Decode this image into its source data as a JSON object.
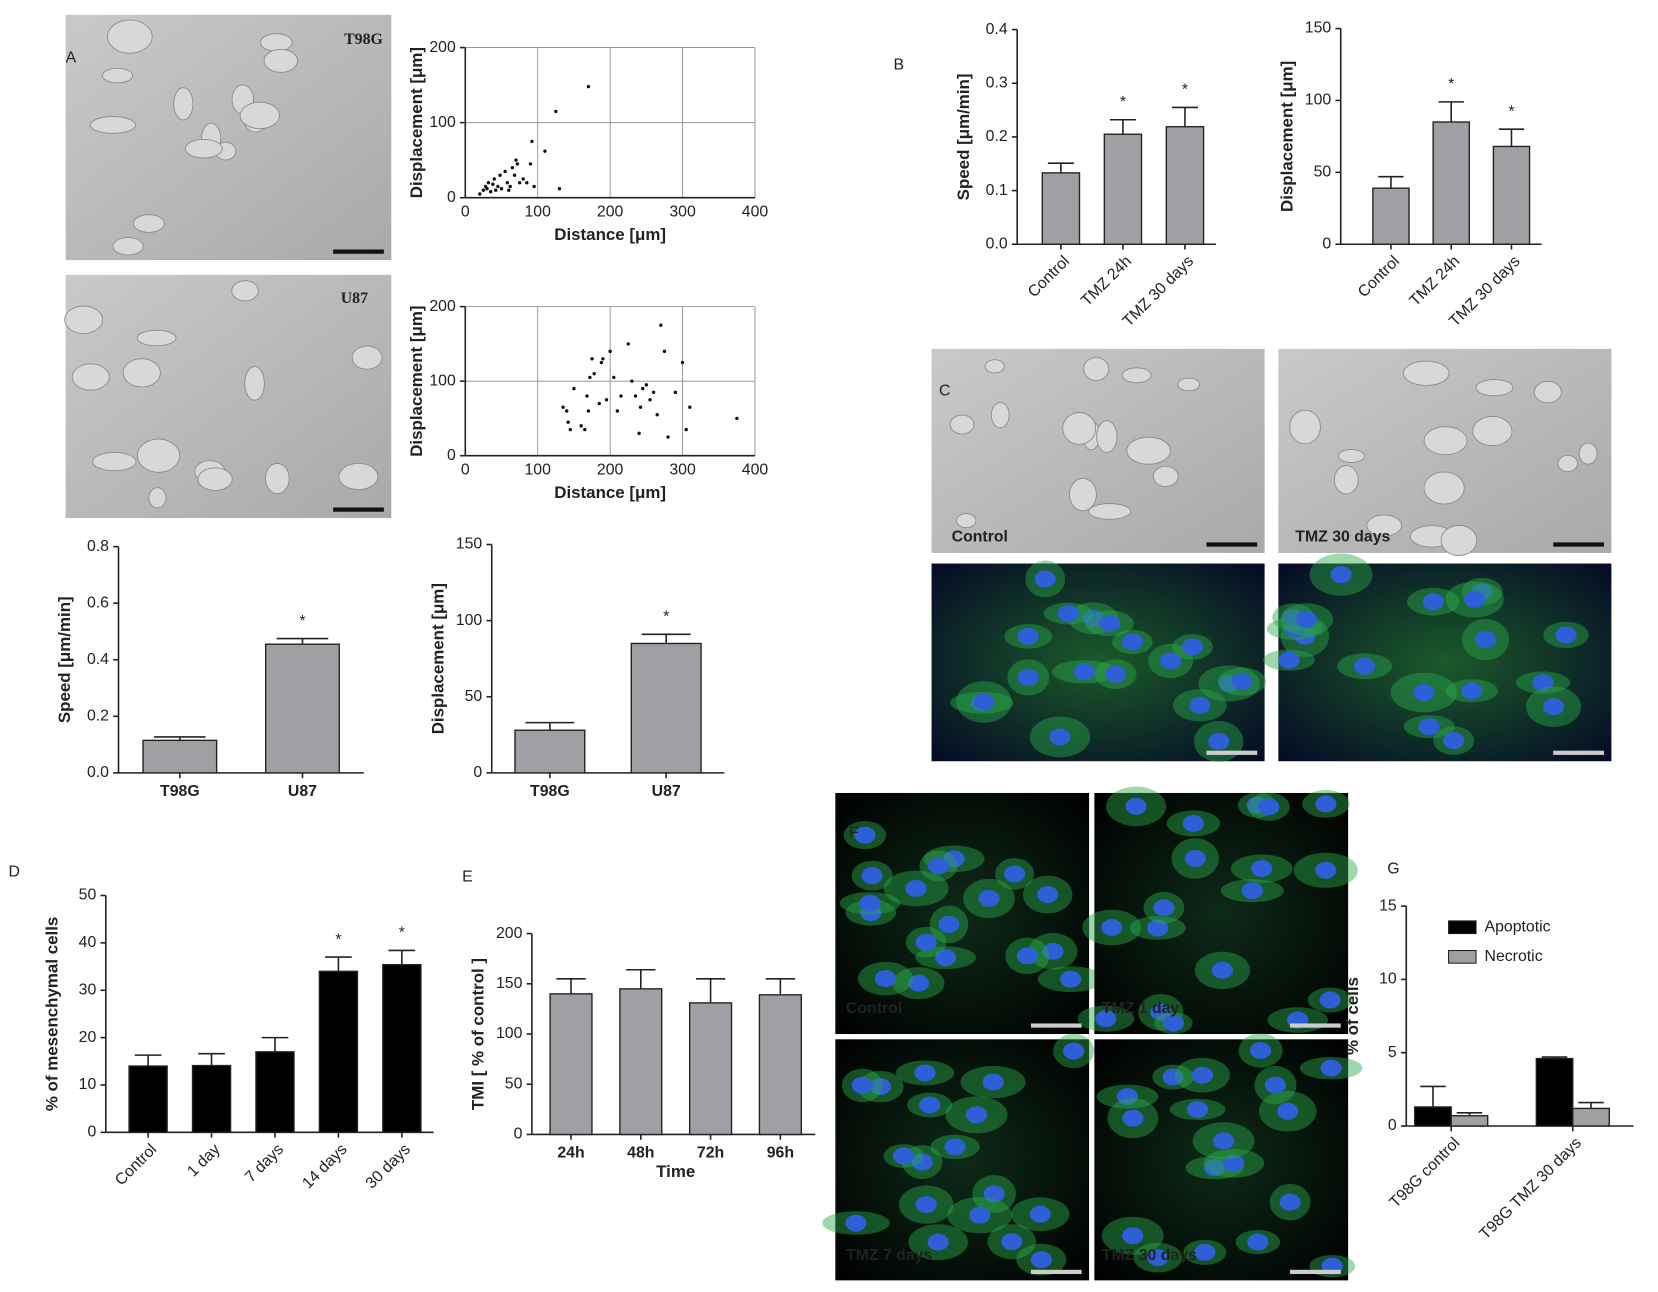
{
  "panel_labels": [
    "A",
    "B",
    "C",
    "D",
    "E",
    "F",
    "G"
  ],
  "images": [
    {
      "label": "T98G"
    },
    {
      "label": "U87"
    },
    {
      "label": "Control"
    },
    {
      "label": "TMZ 30 days"
    },
    {
      "label": "Control"
    },
    {
      "label": "TMZ 1 day"
    },
    {
      "label": "TMZ 7 days"
    },
    {
      "label": "TMZ 30 days"
    }
  ],
  "chart_data": [
    {
      "type": "scatter",
      "xlabel": "Distance [μm]",
      "ylabel": "Displacement [μm]",
      "xlim": [
        0,
        400
      ],
      "ylim": [
        0,
        200
      ],
      "xticks": [
        0,
        100,
        200,
        300,
        400
      ],
      "yticks": [
        0,
        100,
        200
      ],
      "grid": true,
      "color": "#111",
      "x": [
        20,
        25,
        28,
        30,
        32,
        35,
        38,
        40,
        42,
        45,
        48,
        50,
        55,
        58,
        60,
        62,
        65,
        68,
        70,
        72,
        75,
        80,
        85,
        90,
        92,
        95,
        110,
        125,
        130,
        170
      ],
      "values": [
        5,
        10,
        15,
        12,
        20,
        8,
        18,
        25,
        10,
        15,
        30,
        12,
        35,
        20,
        10,
        15,
        40,
        30,
        50,
        45,
        20,
        25,
        20,
        45,
        75,
        15,
        62,
        115,
        12,
        148
      ]
    },
    {
      "type": "scatter",
      "xlabel": "Distance [μm]",
      "ylabel": "Displacement [μm]",
      "xlim": [
        0,
        400
      ],
      "ylim": [
        0,
        200
      ],
      "xticks": [
        0,
        100,
        200,
        300,
        400
      ],
      "yticks": [
        0,
        100,
        200
      ],
      "grid": true,
      "color": "#111",
      "x": [
        135,
        140,
        142,
        145,
        150,
        160,
        165,
        168,
        170,
        172,
        175,
        178,
        185,
        188,
        190,
        195,
        200,
        205,
        210,
        215,
        225,
        230,
        235,
        240,
        242,
        245,
        250,
        255,
        260,
        265,
        270,
        275,
        280,
        290,
        300,
        305,
        310,
        375
      ],
      "values": [
        65,
        60,
        45,
        35,
        90,
        40,
        35,
        80,
        60,
        105,
        130,
        110,
        70,
        125,
        130,
        75,
        140,
        105,
        60,
        80,
        150,
        100,
        80,
        30,
        65,
        90,
        95,
        75,
        85,
        55,
        175,
        140,
        25,
        85,
        125,
        35,
        65,
        50
      ]
    },
    {
      "type": "bar",
      "ylabel": "Speed [μm/min]",
      "categories": [
        "T98G",
        "U87"
      ],
      "values": [
        0.115,
        0.455
      ],
      "errors": [
        0.012,
        0.02
      ],
      "annotations": [
        null,
        "*"
      ],
      "color": "#a0a0a4",
      "ylim": [
        0,
        0.8
      ],
      "yticks": [
        {
          "value": 0,
          "label": "0.0"
        },
        0.2,
        0.4,
        0.6,
        0.8
      ]
    },
    {
      "type": "bar",
      "ylabel": "Displacement [μm]",
      "categories": [
        "T98G",
        "U87"
      ],
      "values": [
        28,
        85
      ],
      "errors": [
        5,
        6
      ],
      "annotations": [
        null,
        "*"
      ],
      "color": "#a0a0a4",
      "ylim": [
        0,
        150
      ],
      "yticks": [
        0,
        50,
        100,
        150
      ]
    },
    {
      "type": "bar",
      "ylabel": "Speed [μm/min]",
      "categories": [
        "Control",
        "TMZ 24h",
        "TMZ 30 days"
      ],
      "values": [
        0.133,
        0.205,
        0.219
      ],
      "errors": [
        0.018,
        0.027,
        0.036
      ],
      "annotations": [
        null,
        "*",
        "*"
      ],
      "color": "#a0a0a4",
      "ylim": [
        0,
        0.4
      ],
      "yticks": [
        {
          "value": 0,
          "label": "0.0"
        },
        0.1,
        0.2,
        0.3,
        0.4
      ]
    },
    {
      "type": "bar",
      "ylabel": "Displacement [μm]",
      "categories": [
        "Control",
        "TMZ 24h",
        "TMZ 30 days"
      ],
      "values": [
        39,
        85,
        68
      ],
      "errors": [
        8,
        14,
        12
      ],
      "annotations": [
        null,
        "*",
        "*"
      ],
      "color": "#a0a0a4",
      "ylim": [
        0,
        150
      ],
      "yticks": [
        0,
        50,
        100,
        150
      ]
    },
    {
      "type": "bar",
      "ylabel": "% of mesenchymal cells",
      "categories": [
        "Control",
        "1 day",
        "7 days",
        "14 days",
        "30 days"
      ],
      "values": [
        14,
        14.1,
        17,
        34,
        35.4
      ],
      "errors": [
        2.3,
        2.5,
        3,
        3,
        3
      ],
      "annotations": [
        null,
        null,
        null,
        "*",
        "*"
      ],
      "color": "#000000",
      "ylim": [
        0,
        50
      ],
      "yticks": [
        0,
        10,
        20,
        30,
        40,
        50
      ]
    },
    {
      "type": "bar",
      "ylabel": "TMI  [ % of control ]",
      "xlabel": "Time",
      "categories": [
        "24h",
        "48h",
        "72h",
        "96h"
      ],
      "values": [
        140,
        145,
        131,
        139
      ],
      "errors": [
        15,
        19,
        24,
        16
      ],
      "color": "#a0a0a4",
      "ylim": [
        0,
        200
      ],
      "yticks": [
        0,
        50,
        100,
        150,
        200
      ]
    },
    {
      "type": "grouped-bar",
      "ylabel": "% of cells",
      "categories": [
        "T98G control",
        "T98G TMZ 30 days"
      ],
      "legend": "upper left",
      "ylim": [
        0,
        15
      ],
      "yticks": [
        0,
        5,
        10,
        15
      ],
      "series": [
        {
          "name": "Apoptotic",
          "color": "#000000",
          "values": [
            1.3,
            4.6
          ],
          "errors": [
            1.4,
            0.1
          ]
        },
        {
          "name": "Necrotic",
          "color": "#a0a0a4",
          "values": [
            0.7,
            1.2
          ],
          "errors": [
            0.2,
            0.4
          ]
        }
      ]
    }
  ]
}
